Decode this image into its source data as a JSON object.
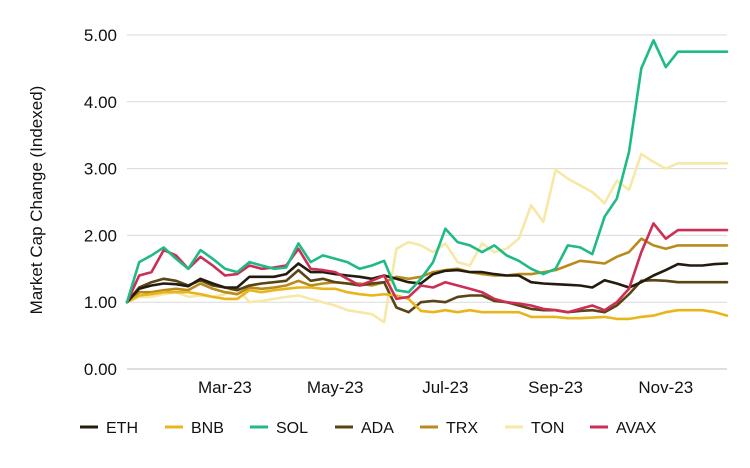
{
  "chart_data": {
    "type": "line",
    "ylabel": "Market Cap Change (Indexed)",
    "xlabel": "",
    "ylim": [
      0,
      5
    ],
    "y_ticks": [
      "0.00",
      "1.00",
      "2.00",
      "3.00",
      "4.00",
      "5.00"
    ],
    "y_tick_values": [
      0,
      1,
      2,
      3,
      4,
      5
    ],
    "x_tick_labels": [
      "Mar-23",
      "May-23",
      "Jul-23",
      "Sep-23",
      "Nov-23"
    ],
    "x_tick_indices": [
      8,
      17,
      26,
      35,
      44
    ],
    "point_count": 50,
    "grid": "horizontal",
    "legend_position": "bottom",
    "series": [
      {
        "name": "ETH",
        "color": "#231c0e",
        "values": [
          1.0,
          1.2,
          1.25,
          1.28,
          1.27,
          1.24,
          1.35,
          1.28,
          1.22,
          1.22,
          1.38,
          1.38,
          1.38,
          1.42,
          1.58,
          1.45,
          1.45,
          1.42,
          1.4,
          1.38,
          1.35,
          1.4,
          1.35,
          1.3,
          1.28,
          1.42,
          1.47,
          1.48,
          1.45,
          1.45,
          1.42,
          1.4,
          1.4,
          1.3,
          1.28,
          1.27,
          1.26,
          1.25,
          1.22,
          1.33,
          1.28,
          1.22,
          1.3,
          1.4,
          1.48,
          1.57,
          1.55,
          1.55,
          1.57,
          1.58
        ]
      },
      {
        "name": "BNB",
        "color": "#e8b51c",
        "values": [
          1.0,
          1.1,
          1.12,
          1.15,
          1.15,
          1.15,
          1.12,
          1.08,
          1.05,
          1.05,
          1.18,
          1.15,
          1.18,
          1.2,
          1.22,
          1.22,
          1.2,
          1.2,
          1.15,
          1.12,
          1.1,
          1.12,
          1.1,
          1.05,
          0.87,
          0.85,
          0.88,
          0.85,
          0.88,
          0.85,
          0.85,
          0.85,
          0.85,
          0.78,
          0.78,
          0.78,
          0.76,
          0.76,
          0.77,
          0.78,
          0.75,
          0.75,
          0.78,
          0.8,
          0.85,
          0.88,
          0.88,
          0.88,
          0.85,
          0.8
        ]
      },
      {
        "name": "SOL",
        "color": "#1fba85",
        "values": [
          1.0,
          1.6,
          1.7,
          1.82,
          1.65,
          1.5,
          1.78,
          1.65,
          1.5,
          1.45,
          1.6,
          1.55,
          1.5,
          1.52,
          1.88,
          1.6,
          1.7,
          1.65,
          1.6,
          1.5,
          1.55,
          1.62,
          1.18,
          1.15,
          1.35,
          1.6,
          2.1,
          1.9,
          1.85,
          1.75,
          1.85,
          1.7,
          1.62,
          1.5,
          1.42,
          1.5,
          1.85,
          1.82,
          1.72,
          2.28,
          2.55,
          3.25,
          4.5,
          4.92,
          4.52,
          4.75,
          4.75,
          4.75,
          4.75,
          4.75
        ]
      },
      {
        "name": "ADA",
        "color": "#5a4415",
        "values": [
          1.0,
          1.22,
          1.3,
          1.35,
          1.32,
          1.25,
          1.33,
          1.25,
          1.22,
          1.18,
          1.25,
          1.28,
          1.3,
          1.32,
          1.48,
          1.32,
          1.35,
          1.3,
          1.28,
          1.25,
          1.28,
          1.3,
          0.92,
          0.85,
          1.0,
          1.02,
          1.0,
          1.08,
          1.1,
          1.1,
          1.02,
          1.0,
          0.95,
          0.9,
          0.88,
          0.88,
          0.85,
          0.87,
          0.88,
          0.85,
          0.95,
          1.12,
          1.32,
          1.33,
          1.32,
          1.3,
          1.3,
          1.3,
          1.3,
          1.3
        ]
      },
      {
        "name": "TRX",
        "color": "#b98b1c",
        "values": [
          1.0,
          1.15,
          1.15,
          1.18,
          1.2,
          1.18,
          1.28,
          1.2,
          1.15,
          1.12,
          1.22,
          1.2,
          1.22,
          1.25,
          1.32,
          1.25,
          1.28,
          1.3,
          1.28,
          1.28,
          1.25,
          1.3,
          1.38,
          1.35,
          1.38,
          1.45,
          1.48,
          1.5,
          1.45,
          1.42,
          1.4,
          1.4,
          1.42,
          1.42,
          1.45,
          1.48,
          1.55,
          1.62,
          1.6,
          1.58,
          1.68,
          1.75,
          1.95,
          1.85,
          1.8,
          1.85,
          1.85,
          1.85,
          1.85,
          1.85
        ]
      },
      {
        "name": "TON",
        "color": "#f6e8a6",
        "values": [
          1.0,
          1.08,
          1.08,
          1.12,
          1.15,
          1.08,
          1.1,
          1.08,
          1.12,
          1.22,
          1.0,
          1.02,
          1.05,
          1.08,
          1.1,
          1.05,
          1.0,
          0.95,
          0.88,
          0.85,
          0.82,
          0.7,
          1.8,
          1.9,
          1.85,
          1.75,
          1.88,
          1.6,
          1.55,
          1.88,
          1.75,
          1.8,
          1.95,
          2.45,
          2.2,
          2.98,
          2.85,
          2.75,
          2.65,
          2.48,
          2.82,
          2.68,
          3.22,
          3.1,
          3.0,
          3.08,
          3.08,
          3.08,
          3.08,
          3.08
        ]
      },
      {
        "name": "AVAX",
        "color": "#cc2f55",
        "values": [
          1.0,
          1.4,
          1.45,
          1.78,
          1.7,
          1.5,
          1.68,
          1.55,
          1.4,
          1.42,
          1.55,
          1.5,
          1.52,
          1.55,
          1.8,
          1.5,
          1.48,
          1.45,
          1.35,
          1.25,
          1.32,
          1.4,
          1.05,
          1.08,
          1.25,
          1.22,
          1.3,
          1.25,
          1.2,
          1.15,
          1.05,
          1.0,
          0.98,
          0.95,
          0.9,
          0.88,
          0.85,
          0.9,
          0.95,
          0.88,
          1.0,
          1.2,
          1.75,
          2.18,
          1.95,
          2.08,
          2.08,
          2.08,
          2.08,
          2.08
        ]
      }
    ]
  }
}
